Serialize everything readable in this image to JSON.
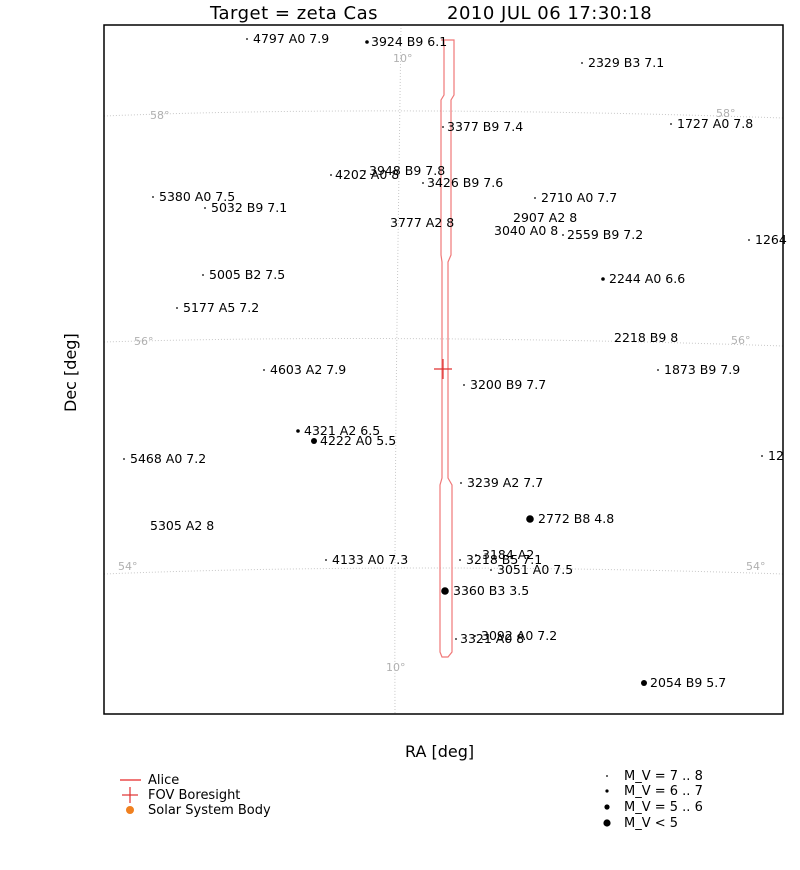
{
  "chart_data": {
    "type": "scatter",
    "title": "Target = zeta Cas",
    "timestamp": "2010 JUL 06 17:30:18",
    "xlabel": "RA [deg]",
    "ylabel": "Dec [deg]",
    "grid_labels": {
      "ra": [
        "10°",
        "10°"
      ],
      "dec": [
        "58°",
        "58°",
        "56°",
        "56°",
        "54°",
        "54°"
      ]
    },
    "stars": [
      {
        "label": "4797 A0 7.9"
      },
      {
        "label": "3924 B9 6.1"
      },
      {
        "label": "2329 B3 7.1"
      },
      {
        "label": "3377 B9 7.4"
      },
      {
        "label": "1727 A0 7.8"
      },
      {
        "label": "3948 B9 7.8"
      },
      {
        "label": "4202 A0 8"
      },
      {
        "label": "3426 B9 7.6"
      },
      {
        "label": "5380 A0 7.5"
      },
      {
        "label": "5032 B9 7.1"
      },
      {
        "label": "2710 A0 7.7"
      },
      {
        "label": "2907 A2 8"
      },
      {
        "label": "3777 A2 8"
      },
      {
        "label": "3040 A0 8"
      },
      {
        "label": "2559 B9 7.2"
      },
      {
        "label": "1264"
      },
      {
        "label": "5005 B2 7.5"
      },
      {
        "label": "2244 A0 6.6"
      },
      {
        "label": "5177 A5 7.2"
      },
      {
        "label": "2218 B9 8"
      },
      {
        "label": "4603 A2 7.9"
      },
      {
        "label": "3200 B9 7.7"
      },
      {
        "label": "1873 B9 7.9"
      },
      {
        "label": "4321 A2 6.5"
      },
      {
        "label": "4222 A0 5.5"
      },
      {
        "label": "5468 A0 7.2"
      },
      {
        "label": "12"
      },
      {
        "label": "3239 A2 7.7"
      },
      {
        "label": "2772 B8 4.8"
      },
      {
        "label": "5305 A2 8"
      },
      {
        "label": "4133 A0 7.3"
      },
      {
        "label": "3218 B5 7.1"
      },
      {
        "label": "3184 A2"
      },
      {
        "label": "3051 A0 7.5"
      },
      {
        "label": "3360 B3 3.5"
      },
      {
        "label": "3092 A0 7.2"
      },
      {
        "label": "3321 A0 8"
      },
      {
        "label": "2054 B9 5.7"
      }
    ],
    "legend": {
      "lines": [
        {
          "name": "Alice",
          "color": "#f07878"
        },
        {
          "name": "FOV Boresight",
          "color": "#e03030"
        },
        {
          "name": "Solar System Body",
          "color": "#f08020"
        }
      ],
      "magnitudes": [
        "M_V = 7 .. 8",
        "M_V = 6 .. 7",
        "M_V = 5 .. 6",
        "M_V < 5"
      ]
    }
  }
}
